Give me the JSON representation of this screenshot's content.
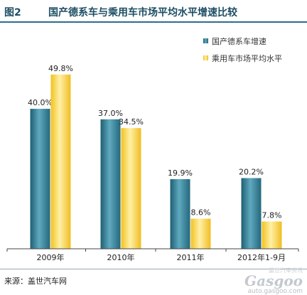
{
  "header": {
    "figure_no": "图2",
    "title": "国产德系车与乘用车市场平均水平增速比较"
  },
  "chart_data": {
    "type": "bar",
    "title": "国产德系车与乘用车市场平均水平增速比较",
    "categories": [
      "2009年",
      "2010年",
      "2011年",
      "2012年1-9月"
    ],
    "series": [
      {
        "name": "国产德系车增速",
        "values": [
          40.0,
          37.0,
          19.9,
          20.2
        ],
        "labels": [
          "40.0%",
          "37.0%",
          "19.9%",
          "20.2%"
        ],
        "color": "#2f7e96"
      },
      {
        "name": "乘用车市场平均水平",
        "values": [
          49.8,
          34.5,
          8.6,
          7.8
        ],
        "labels": [
          "49.8%",
          "34.5%",
          "8.6%",
          "7.8%"
        ],
        "color": "#f7c92e"
      }
    ],
    "ylim": [
      0,
      52
    ],
    "grid": false,
    "legend_position": "top-right"
  },
  "footer": {
    "source": "来源：盖世汽车网",
    "watermark_cn": "盖世汽车资讯",
    "watermark_logo": "Gasgoo",
    "watermark_url": "auto.gasgoo.com"
  },
  "colors": {
    "title": "#1d4e63",
    "axis": "#444444"
  }
}
